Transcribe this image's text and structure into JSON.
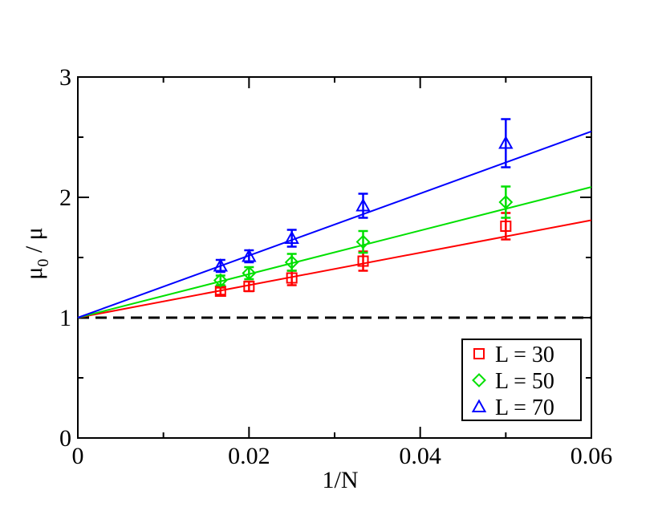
{
  "chart_data": {
    "type": "scatter",
    "xlabel": "1/N",
    "ylabel": "μ",
    "ylabel_sub": "0",
    "ylabel_rest": " / μ",
    "xlim": [
      0,
      0.06
    ],
    "ylim": [
      0,
      3
    ],
    "x_ticks": [
      0,
      0.02,
      0.04,
      0.06
    ],
    "x_tick_labels": [
      "0",
      "0.02",
      "0.04",
      "0.06"
    ],
    "y_ticks": [
      0,
      1,
      2,
      3
    ],
    "y_tick_labels": [
      "0",
      "1",
      "2",
      "3"
    ],
    "reference_line": {
      "y": 1,
      "style": "dashed",
      "color": "#000000"
    },
    "legend_position": "bottom-right",
    "series": [
      {
        "name": "L = 30",
        "marker": "square",
        "color": "#ff0000",
        "x": [
          0.01667,
          0.02,
          0.025,
          0.03333,
          0.05
        ],
        "y": [
          1.22,
          1.26,
          1.33,
          1.47,
          1.76
        ],
        "err": [
          0.03,
          0.04,
          0.06,
          0.08,
          0.11
        ],
        "fit": {
          "intercept": 1.0,
          "slope": 13.5
        }
      },
      {
        "name": "L = 50",
        "marker": "diamond",
        "color": "#00e000",
        "x": [
          0.01667,
          0.02,
          0.025,
          0.03333,
          0.05
        ],
        "y": [
          1.31,
          1.37,
          1.46,
          1.63,
          1.96
        ],
        "err": [
          0.04,
          0.05,
          0.07,
          0.09,
          0.13
        ],
        "fit": {
          "intercept": 1.0,
          "slope": 18.1
        }
      },
      {
        "name": "L = 70",
        "marker": "triangle",
        "color": "#0000ff",
        "x": [
          0.01667,
          0.02,
          0.025,
          0.03333,
          0.05
        ],
        "y": [
          1.43,
          1.51,
          1.66,
          1.93,
          2.45
        ],
        "err": [
          0.05,
          0.05,
          0.07,
          0.1,
          0.2
        ],
        "fit": {
          "intercept": 1.0,
          "slope": 25.8
        }
      }
    ]
  }
}
